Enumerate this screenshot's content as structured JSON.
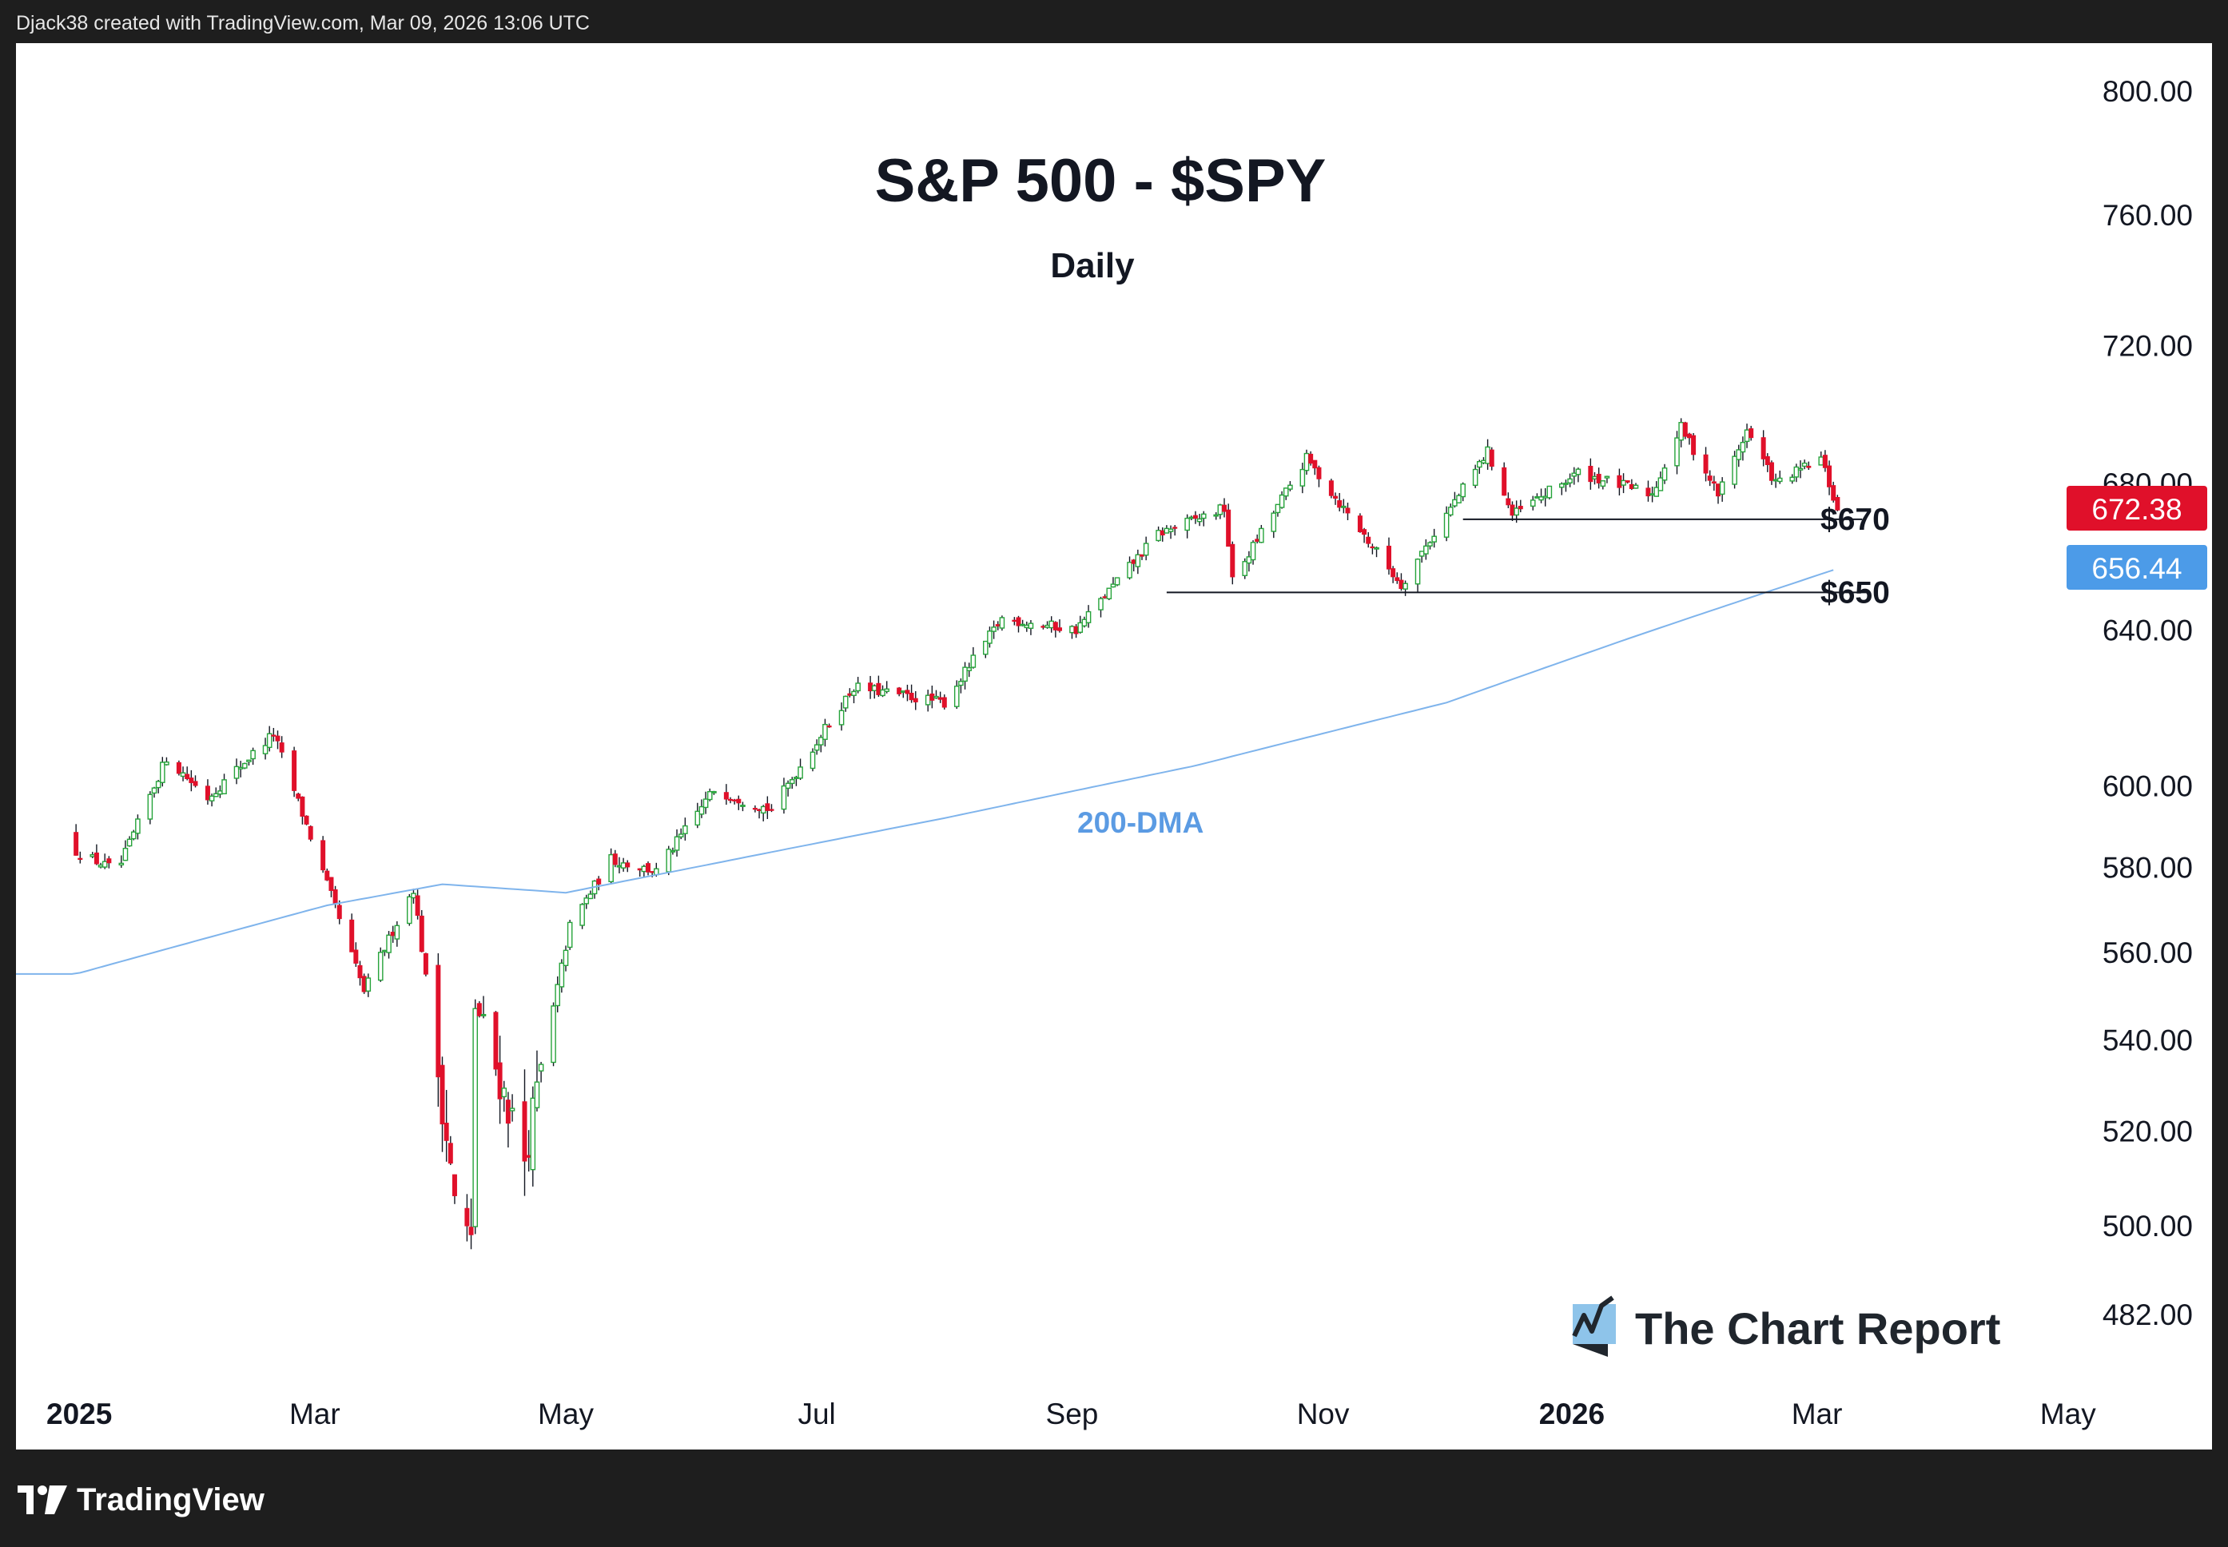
{
  "header": {
    "credit": "Djack38 created with TradingView.com, Mar 09, 2026 13:06 UTC"
  },
  "footer": {
    "brand": "TradingView"
  },
  "watermark": {
    "brand": "The Chart Report"
  },
  "colors": {
    "up": "#26a33a",
    "down": "#e0102a",
    "ma": "#7fb4ec",
    "price_badge": "#e0102a",
    "ma_badge": "#4c9be8"
  },
  "chart_data": {
    "type": "candlestick",
    "title": "S&P 500 - $SPY",
    "subtitle": "Daily",
    "x_tick_labels": [
      "2025",
      "Mar",
      "May",
      "Jul",
      "Sep",
      "Nov",
      "2026",
      "Mar",
      "May"
    ],
    "y_tick_labels": [
      "800.00",
      "760.00",
      "720.00",
      "680.00",
      "640.00",
      "600.00",
      "580.00",
      "560.00",
      "540.00",
      "520.00",
      "500.00",
      "482.00"
    ],
    "y_scale": "log",
    "ylim": [
      470,
      810
    ],
    "last_price": "672.38",
    "ma_label": "200-DMA",
    "ma_value": "656.44",
    "levels": [
      {
        "label": "$670",
        "value": 670
      },
      {
        "label": "$650",
        "value": 650
      }
    ],
    "price_anchors": [
      {
        "date": "2025-01-02",
        "close": 584
      },
      {
        "date": "2025-01-10",
        "close": 580
      },
      {
        "date": "2025-01-13",
        "close": 581
      },
      {
        "date": "2025-01-24",
        "close": 607
      },
      {
        "date": "2025-02-03",
        "close": 597
      },
      {
        "date": "2025-02-19",
        "close": 613
      },
      {
        "date": "2025-03-04",
        "close": 576
      },
      {
        "date": "2025-03-13",
        "close": 551
      },
      {
        "date": "2025-03-25",
        "close": 575
      },
      {
        "date": "2025-04-04",
        "close": 505
      },
      {
        "date": "2025-04-08",
        "close": 496
      },
      {
        "date": "2025-04-09",
        "close": 548
      },
      {
        "date": "2025-04-21",
        "close": 514
      },
      {
        "date": "2025-05-02",
        "close": 566
      },
      {
        "date": "2025-05-12",
        "close": 582
      },
      {
        "date": "2025-05-23",
        "close": 579
      },
      {
        "date": "2025-06-06",
        "close": 599
      },
      {
        "date": "2025-06-20",
        "close": 594
      },
      {
        "date": "2025-07-10",
        "close": 625
      },
      {
        "date": "2025-08-01",
        "close": 621
      },
      {
        "date": "2025-08-15",
        "close": 643
      },
      {
        "date": "2025-09-02",
        "close": 640
      },
      {
        "date": "2025-09-22",
        "close": 666
      },
      {
        "date": "2025-10-08",
        "close": 673
      },
      {
        "date": "2025-10-10",
        "close": 653
      },
      {
        "date": "2025-10-28",
        "close": 687
      },
      {
        "date": "2025-11-04",
        "close": 676
      },
      {
        "date": "2025-11-20",
        "close": 652
      },
      {
        "date": "2025-12-11",
        "close": 689
      },
      {
        "date": "2025-12-17",
        "close": 671
      },
      {
        "date": "2026-01-02",
        "close": 683
      },
      {
        "date": "2026-01-20",
        "close": 677
      },
      {
        "date": "2026-01-27",
        "close": 696
      },
      {
        "date": "2026-02-05",
        "close": 677
      },
      {
        "date": "2026-02-12",
        "close": 695
      },
      {
        "date": "2026-02-19",
        "close": 680
      },
      {
        "date": "2026-03-02",
        "close": 687
      },
      {
        "date": "2026-03-06",
        "close": 672.38
      }
    ],
    "ma_anchors": [
      {
        "date": "2025-01-02",
        "value": 555
      },
      {
        "date": "2025-03-04",
        "value": 571
      },
      {
        "date": "2025-04-01",
        "value": 576
      },
      {
        "date": "2025-05-01",
        "value": 574
      },
      {
        "date": "2025-06-01",
        "value": 580
      },
      {
        "date": "2025-08-01",
        "value": 592
      },
      {
        "date": "2025-10-01",
        "value": 605
      },
      {
        "date": "2025-12-01",
        "value": 621
      },
      {
        "date": "2026-01-15",
        "value": 638
      },
      {
        "date": "2026-03-06",
        "value": 656.44
      }
    ]
  }
}
